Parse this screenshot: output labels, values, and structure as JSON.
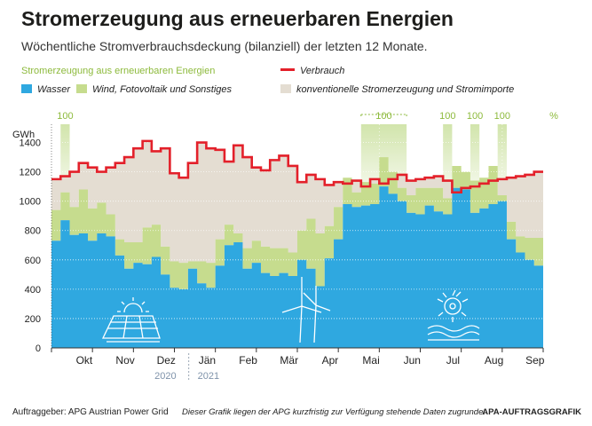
{
  "title": "Stromerzeugung aus erneuerbaren Energien",
  "subtitle": "Wöchentliche Stromverbrauchsdeckung (bilanziell) der letzten 12 Monate.",
  "legend": {
    "heading": "Stromerzeugung aus erneuerbaren Energien",
    "wasser": "Wasser",
    "wind": "Wind, Fotovoltaik und Sonstiges",
    "verbrauch": "Verbrauch",
    "konventionell": "konventionelle Stromerzeugung und Stromimporte"
  },
  "footer": {
    "client": "Auftraggeber: APG Austrian Power Grid",
    "note": "Dieser Grafik liegen der APG kurzfristig zur Verfügung stehende Daten zugrunde.",
    "credit": "APA-AUFTRAGSGRAFIK"
  },
  "colors": {
    "wasser": "#2fa8e0",
    "wind": "#c6dc8e",
    "konventionell": "#e4ddd2",
    "verbrauch": "#e3202a",
    "green_text": "#8dba3c",
    "highlight": "#cfe3a7"
  },
  "chart_data": {
    "type": "area",
    "y_unit": "GWh",
    "ylim": [
      0,
      1500
    ],
    "yticks": [
      0,
      200,
      400,
      600,
      800,
      1000,
      1200,
      1400
    ],
    "months": [
      "Okt",
      "Nov",
      "Dez",
      "Jän",
      "Feb",
      "Mär",
      "Apr",
      "Mai",
      "Jun",
      "Jul",
      "Aug",
      "Sep"
    ],
    "years": [
      "2020",
      "2021"
    ],
    "pct_label": "%",
    "full_coverage_marks": [
      {
        "label": "100",
        "start_week": 1,
        "end_week": 1,
        "bracket": false
      },
      {
        "label": "100",
        "start_week": 34,
        "end_week": 38,
        "bracket": true
      },
      {
        "label": "100",
        "start_week": 43,
        "end_week": 43,
        "bracket": false
      },
      {
        "label": "100",
        "start_week": 46,
        "end_week": 46,
        "bracket": false
      },
      {
        "label": "100",
        "start_week": 49,
        "end_week": 49,
        "bracket": false
      }
    ],
    "series": [
      {
        "name": "Wasser",
        "values": [
          730,
          870,
          770,
          780,
          730,
          780,
          760,
          630,
          540,
          580,
          570,
          620,
          500,
          410,
          400,
          540,
          440,
          410,
          560,
          700,
          720,
          540,
          580,
          510,
          490,
          510,
          490,
          600,
          540,
          420,
          610,
          740,
          980,
          960,
          970,
          980,
          1100,
          1050,
          1000,
          920,
          910,
          970,
          930,
          910,
          1090,
          1080,
          920,
          950,
          980,
          1000,
          740,
          650,
          600,
          560
        ]
      },
      {
        "name": "Wind, Fotovoltaik und Sonstiges",
        "values": [
          940,
          1060,
          960,
          1080,
          950,
          990,
          910,
          740,
          720,
          720,
          820,
          840,
          690,
          590,
          580,
          590,
          590,
          580,
          740,
          840,
          780,
          680,
          730,
          690,
          680,
          680,
          650,
          800,
          880,
          780,
          830,
          960,
          1160,
          1060,
          1130,
          1120,
          1300,
          1200,
          1090,
          1040,
          1090,
          1090,
          1090,
          1020,
          1240,
          1200,
          1140,
          1160,
          1240,
          1040,
          860,
          760,
          750,
          750
        ]
      },
      {
        "name": "Verbrauch",
        "values": [
          1150,
          1170,
          1200,
          1260,
          1230,
          1200,
          1230,
          1260,
          1300,
          1360,
          1410,
          1340,
          1360,
          1190,
          1160,
          1260,
          1400,
          1360,
          1350,
          1270,
          1380,
          1300,
          1230,
          1210,
          1280,
          1310,
          1240,
          1130,
          1180,
          1150,
          1110,
          1130,
          1120,
          1140,
          1100,
          1150,
          1120,
          1150,
          1180,
          1140,
          1150,
          1160,
          1170,
          1140,
          1060,
          1090,
          1100,
          1120,
          1140,
          1150,
          1160,
          1170,
          1180,
          1200
        ]
      }
    ]
  }
}
